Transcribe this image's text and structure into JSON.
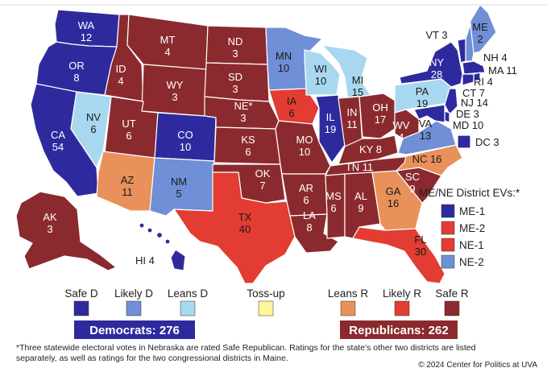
{
  "colors": {
    "safe_d": "#2e2a9e",
    "likely_d": "#6f8fd6",
    "leans_d": "#a8d8f0",
    "tossup": "#fff59a",
    "leans_r": "#e8915a",
    "likely_r": "#e23c33",
    "safe_r": "#8b2a2e"
  },
  "states": [
    {
      "id": "WA",
      "text": "WA\n12",
      "rating": "safe_d"
    },
    {
      "id": "OR",
      "text": "OR\n8",
      "rating": "safe_d"
    },
    {
      "id": "CA",
      "text": "CA\n54",
      "rating": "safe_d"
    },
    {
      "id": "NV",
      "text": "NV\n6",
      "rating": "leans_d"
    },
    {
      "id": "ID",
      "text": "ID\n4",
      "rating": "safe_r"
    },
    {
      "id": "MT",
      "text": "MT\n4",
      "rating": "safe_r"
    },
    {
      "id": "WY",
      "text": "WY\n3",
      "rating": "safe_r"
    },
    {
      "id": "UT",
      "text": "UT\n6",
      "rating": "safe_r"
    },
    {
      "id": "CO",
      "text": "CO\n10",
      "rating": "safe_d"
    },
    {
      "id": "AZ",
      "text": "AZ\n11",
      "rating": "leans_r"
    },
    {
      "id": "NM",
      "text": "NM\n5",
      "rating": "likely_d"
    },
    {
      "id": "ND",
      "text": "ND\n3",
      "rating": "safe_r"
    },
    {
      "id": "SD",
      "text": "SD\n3",
      "rating": "safe_r"
    },
    {
      "id": "NE",
      "text": "NE*\n3",
      "rating": "safe_r"
    },
    {
      "id": "KS",
      "text": "KS\n6",
      "rating": "safe_r"
    },
    {
      "id": "OK",
      "text": "OK\n7",
      "rating": "safe_r"
    },
    {
      "id": "TX",
      "text": "TX\n40",
      "rating": "likely_r"
    },
    {
      "id": "MN",
      "text": "MN\n10",
      "rating": "likely_d"
    },
    {
      "id": "IA",
      "text": "IA\n6",
      "rating": "likely_r"
    },
    {
      "id": "MO",
      "text": "MO\n10",
      "rating": "safe_r"
    },
    {
      "id": "AR",
      "text": "AR\n6",
      "rating": "safe_r"
    },
    {
      "id": "LA",
      "text": "LA\n8",
      "rating": "safe_r"
    },
    {
      "id": "WI",
      "text": "WI\n10",
      "rating": "leans_d"
    },
    {
      "id": "IL",
      "text": "IL\n19",
      "rating": "safe_d"
    },
    {
      "id": "MI",
      "text": "MI\n15",
      "rating": "leans_d"
    },
    {
      "id": "IN",
      "text": "IN\n11",
      "rating": "safe_r"
    },
    {
      "id": "OH",
      "text": "OH\n17",
      "rating": "safe_r"
    },
    {
      "id": "KY",
      "text": "KY 8",
      "rating": "safe_r"
    },
    {
      "id": "TN",
      "text": "TN 11",
      "rating": "safe_r"
    },
    {
      "id": "MS",
      "text": "MS\n6",
      "rating": "safe_r"
    },
    {
      "id": "AL",
      "text": "AL\n9",
      "rating": "safe_r"
    },
    {
      "id": "GA",
      "text": "GA\n16",
      "rating": "leans_r"
    },
    {
      "id": "FL",
      "text": "FL\n30",
      "rating": "likely_r"
    },
    {
      "id": "SC",
      "text": "SC\n9",
      "rating": "safe_r"
    },
    {
      "id": "NC",
      "text": "NC 16",
      "rating": "leans_r"
    },
    {
      "id": "VA",
      "text": "VA\n13",
      "rating": "likely_d"
    },
    {
      "id": "WV",
      "text": "WV\n4",
      "rating": "safe_r"
    },
    {
      "id": "PA",
      "text": "PA\n19",
      "rating": "leans_d"
    },
    {
      "id": "NY",
      "text": "NY\n28",
      "rating": "safe_d"
    },
    {
      "id": "ME",
      "text": "ME\n2",
      "rating": "likely_d"
    },
    {
      "id": "VT",
      "text": "VT 3",
      "rating": "safe_d"
    },
    {
      "id": "NH",
      "text": "NH 4",
      "rating": "likely_d"
    },
    {
      "id": "MA",
      "text": "MA 11",
      "rating": "safe_d"
    },
    {
      "id": "RI",
      "text": "RI 4",
      "rating": "safe_d"
    },
    {
      "id": "CT",
      "text": "CT 7",
      "rating": "safe_d"
    },
    {
      "id": "NJ",
      "text": "NJ 14",
      "rating": "safe_d"
    },
    {
      "id": "DE",
      "text": "DE 3",
      "rating": "safe_d"
    },
    {
      "id": "MD",
      "text": "MD 10",
      "rating": "safe_d"
    },
    {
      "id": "DC",
      "text": "DC 3",
      "rating": "safe_d"
    },
    {
      "id": "AK",
      "text": "AK\n3",
      "rating": "safe_r"
    },
    {
      "id": "HI",
      "text": "HI 4",
      "rating": "safe_d"
    }
  ],
  "district_legend": {
    "title": "ME/NE District EVs:*",
    "items": [
      {
        "label": "ME-1",
        "rating": "safe_d"
      },
      {
        "label": "ME-2",
        "rating": "likely_r"
      },
      {
        "label": "NE-1",
        "rating": "likely_r"
      },
      {
        "label": "NE-2",
        "rating": "likely_d"
      }
    ]
  },
  "legend": [
    {
      "label": "Safe D",
      "rating": "safe_d"
    },
    {
      "label": "Likely D",
      "rating": "likely_d"
    },
    {
      "label": "Leans D",
      "rating": "leans_d"
    },
    {
      "label": "Toss-up",
      "rating": "tossup"
    },
    {
      "label": "Leans R",
      "rating": "leans_r"
    },
    {
      "label": "Likely R",
      "rating": "likely_r"
    },
    {
      "label": "Safe R",
      "rating": "safe_r"
    }
  ],
  "totals": {
    "democrats": "Democrats: 276",
    "republicans": "Republicans: 262"
  },
  "footnote": [
    "*Three statewide electoral votes in Nebraska are rated Safe Republican. Ratings for the state's other two districts are listed",
    "separately, as well as ratings for the two congressional districts in Maine."
  ],
  "copyright": "© 2024 Center for Politics at UVA"
}
